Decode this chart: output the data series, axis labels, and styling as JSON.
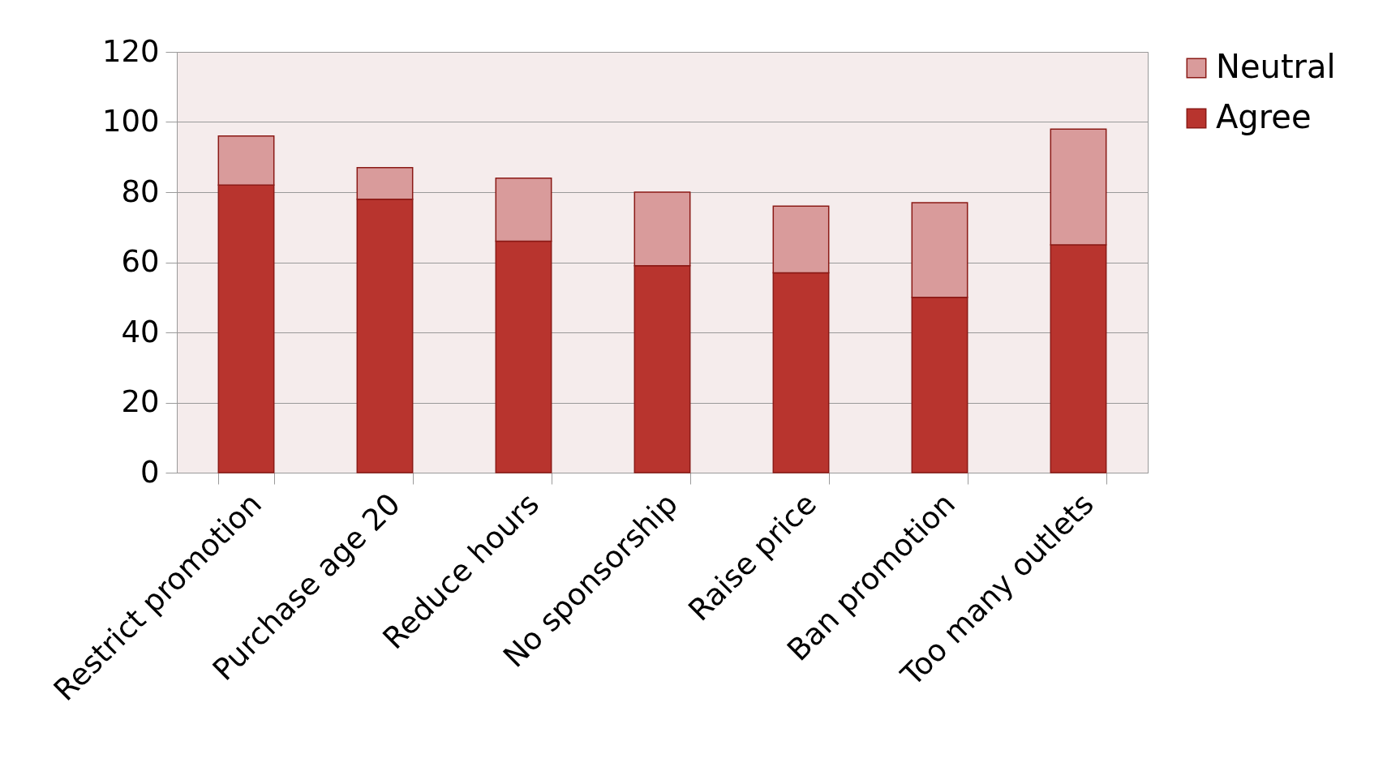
{
  "chart_data": {
    "type": "bar",
    "stacked": true,
    "categories": [
      "Restrict promotion",
      "Purchase age 20",
      "Reduce hours",
      "No sponsorship",
      "Raise price",
      "Ban promotion",
      "Too many outlets"
    ],
    "series": [
      {
        "name": "Agree",
        "color": "#b8342e",
        "values": [
          82,
          78,
          66,
          59,
          57,
          50,
          65
        ]
      },
      {
        "name": "Neutral",
        "color": "#d99b9b",
        "values": [
          14,
          9,
          18,
          21,
          19,
          27,
          33
        ]
      }
    ],
    "ylim": [
      0,
      120
    ],
    "yticks": [
      0,
      20,
      40,
      60,
      80,
      100,
      120
    ],
    "grid": "y",
    "legend": "right"
  }
}
